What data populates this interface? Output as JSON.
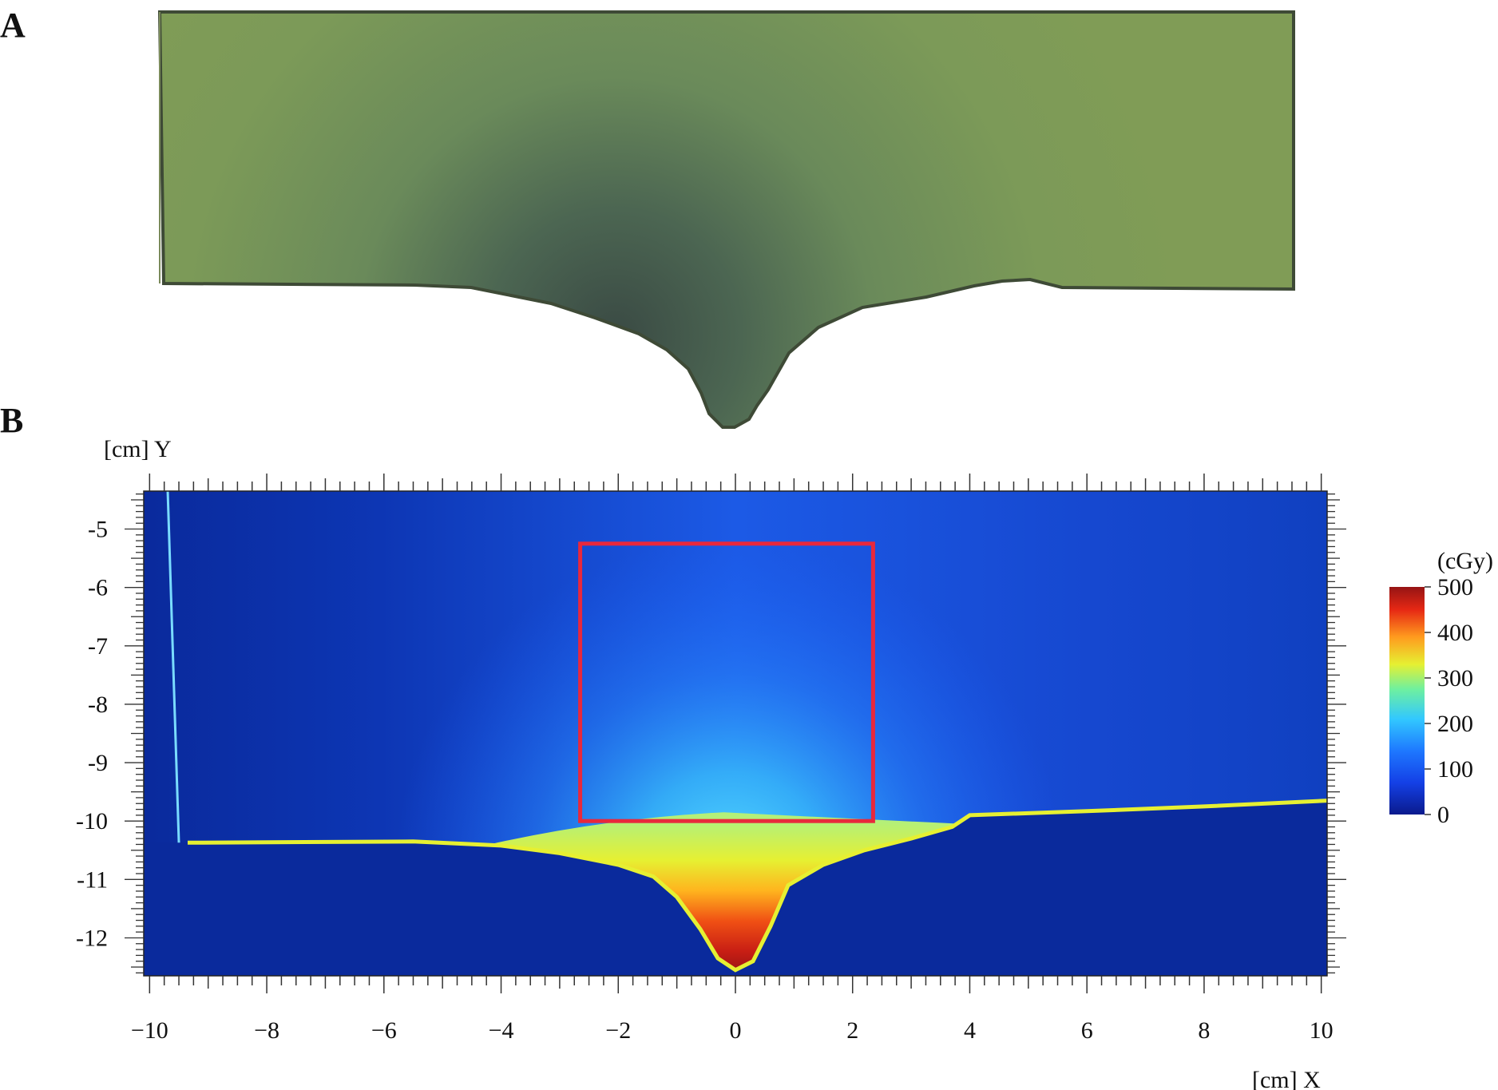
{
  "panels": {
    "a": {
      "label": "A"
    },
    "b": {
      "label": "B"
    }
  },
  "chart_data": {
    "type": "heatmap",
    "title": "",
    "xlabel": "[cm] X",
    "ylabel": "[cm] Y",
    "xlim": [
      -10.1,
      10.1
    ],
    "ylim": [
      -12.65,
      -4.35
    ],
    "x_ticks": [
      -10,
      -8,
      -6,
      -4,
      -2,
      0,
      2,
      4,
      6,
      8,
      10
    ],
    "x_tick_labels": [
      "−10",
      "−8",
      "−6",
      "−4",
      "−2",
      "0",
      "2",
      "4",
      "6",
      "8",
      "10"
    ],
    "y_ticks": [
      -5,
      -6,
      -7,
      -8,
      -9,
      -10,
      -11,
      -12
    ],
    "y_tick_labels": [
      "-5",
      "-6",
      "-7",
      "-8",
      "-9",
      "-10",
      "-11",
      "-12"
    ],
    "colorbar": {
      "title": "(cGy)",
      "min": 0,
      "max": 500,
      "ticks": [
        500,
        400,
        300,
        200,
        100,
        0
      ],
      "tick_labels": [
        "500",
        "400",
        "300",
        "200",
        "100",
        "0"
      ],
      "colors": [
        "#0a1a8c",
        "#1e64ff",
        "#32c8ff",
        "#6ef0a0",
        "#e6f032",
        "#ff9b1e",
        "#e62814",
        "#961414"
      ]
    },
    "roi_box": {
      "x": [
        -2.65,
        2.35
      ],
      "y": [
        -10.0,
        -5.25
      ],
      "color": "#e8283c"
    },
    "surface_profile": {
      "x": [
        -9.35,
        -5.5,
        -4.0,
        -3.0,
        -2.0,
        -1.4,
        -1.0,
        -0.6,
        -0.3,
        0.0,
        0.3,
        0.6,
        0.9,
        1.5,
        2.2,
        3.0,
        3.7,
        4.0,
        6.0,
        8.0,
        10.1
      ],
      "y": [
        -10.37,
        -10.35,
        -10.42,
        -10.55,
        -10.75,
        -10.95,
        -11.3,
        -11.85,
        -12.35,
        -12.55,
        -12.4,
        -11.8,
        -11.1,
        -10.75,
        -10.5,
        -10.3,
        -10.1,
        -9.9,
        -9.83,
        -9.75,
        -9.65
      ]
    },
    "film_edge_x": -9.5,
    "surface_dose_cgy": 300,
    "dose_peak": {
      "x": -0.1,
      "y": -12.3,
      "dose_cgy": 500
    }
  }
}
